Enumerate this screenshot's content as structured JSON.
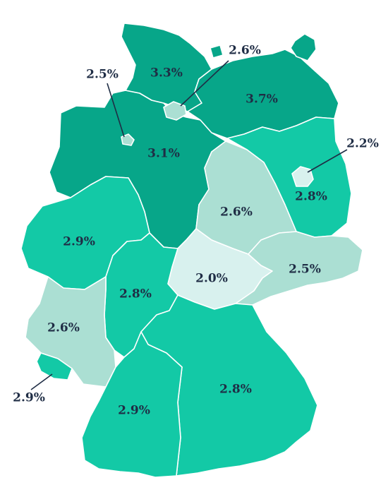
{
  "palette": {
    "darkest": "#07a689",
    "dark": "#15b896",
    "medium": "#13c9a6",
    "light": "#abdfd3",
    "lightest": "#d8f1ee",
    "border": "#ffffff",
    "label": "#1f2d45"
  },
  "regions": [
    {
      "id": "schleswig-holstein",
      "value": "3.3%",
      "shade": "darkest"
    },
    {
      "id": "hamburg",
      "value": "2.6%",
      "shade": "light"
    },
    {
      "id": "mecklenburg-vorpommern",
      "value": "3.7%",
      "shade": "darkest"
    },
    {
      "id": "bremen",
      "value": "2.5%",
      "shade": "light"
    },
    {
      "id": "niedersachsen",
      "value": "3.1%",
      "shade": "darkest"
    },
    {
      "id": "berlin",
      "value": "2.2%",
      "shade": "lightest"
    },
    {
      "id": "brandenburg",
      "value": "2.8%",
      "shade": "medium"
    },
    {
      "id": "sachsen-anhalt",
      "value": "2.6%",
      "shade": "light"
    },
    {
      "id": "nordrhein-westfalen",
      "value": "2.9%",
      "shade": "medium"
    },
    {
      "id": "thueringen",
      "value": "2.0%",
      "shade": "lightest"
    },
    {
      "id": "sachsen",
      "value": "2.5%",
      "shade": "light"
    },
    {
      "id": "hessen",
      "value": "2.8%",
      "shade": "medium"
    },
    {
      "id": "rheinland-pfalz",
      "value": "2.6%",
      "shade": "light"
    },
    {
      "id": "saarland",
      "value": "2.9%",
      "shade": "medium"
    },
    {
      "id": "bayern",
      "value": "2.8%",
      "shade": "medium"
    },
    {
      "id": "baden-wuerttemberg",
      "value": "2.9%",
      "shade": "medium"
    }
  ]
}
